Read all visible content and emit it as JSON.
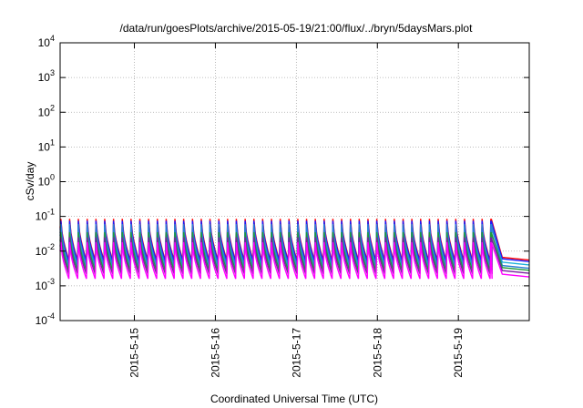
{
  "chart_data": {
    "type": "line",
    "title": "/data/run/goesPlots/archive/2015-05-19/21:00/flux/../bryn/5daysMars.plot",
    "xlabel": "Coordinated Universal Time (UTC)",
    "ylabel": "cSv/day",
    "yscale": "log",
    "ylim": [
      0.0001,
      10000
    ],
    "xlim": [
      "2015-05-14 02:00",
      "2015-05-19 21:00"
    ],
    "grid": true,
    "legend": "none",
    "y_ticks": [
      {
        "base": "10",
        "exp": "4",
        "value": 10000
      },
      {
        "base": "10",
        "exp": "3",
        "value": 1000
      },
      {
        "base": "10",
        "exp": "2",
        "value": 100
      },
      {
        "base": "10",
        "exp": "1",
        "value": 10
      },
      {
        "base": "10",
        "exp": "0",
        "value": 1
      },
      {
        "base": "10",
        "exp": "-1",
        "value": 0.1
      },
      {
        "base": "10",
        "exp": "-2",
        "value": 0.01
      },
      {
        "base": "10",
        "exp": "-3",
        "value": 0.001
      },
      {
        "base": "10",
        "exp": "-4",
        "value": 0.0001
      }
    ],
    "x_ticks": [
      {
        "label": "2015-5-15",
        "value": "2015-05-15 00:00"
      },
      {
        "label": "2015-5-16",
        "value": "2015-05-16 00:00"
      },
      {
        "label": "2015-5-17",
        "value": "2015-05-17 00:00"
      },
      {
        "label": "2015-5-18",
        "value": "2015-05-18 00:00"
      },
      {
        "label": "2015-5-19",
        "value": "2015-05-19 00:00"
      }
    ],
    "sawtooth_period_hours": 2.6,
    "drop_time": "2015-05-19 10:00",
    "series": [
      {
        "color": "#ff0000",
        "peak": 0.085,
        "trough": 0.0055,
        "after_drop": 0.0055
      },
      {
        "color": "#1a1aff",
        "peak": 0.075,
        "trough": 0.005,
        "after_drop": 0.005
      },
      {
        "color": "#18b0d8",
        "peak": 0.05,
        "trough": 0.0035,
        "after_drop": 0.004
      },
      {
        "color": "#2a7fd4",
        "peak": 0.06,
        "trough": 0.004,
        "after_drop": 0.0032
      },
      {
        "color": "#1e9a3a",
        "peak": 0.035,
        "trough": 0.0028,
        "after_drop": 0.0028
      },
      {
        "color": "#7a1fa0",
        "peak": 0.025,
        "trough": 0.0022,
        "after_drop": 0.0023
      },
      {
        "color": "#ff00ff",
        "peak": 0.018,
        "trough": 0.0016,
        "after_drop": 0.0018
      }
    ]
  }
}
